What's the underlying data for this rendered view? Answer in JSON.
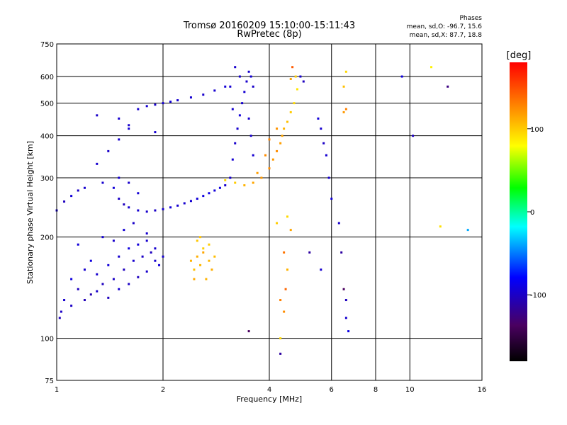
{
  "chart_data": {
    "type": "scatter",
    "title": "Tromsø 20160209 15:10:00-15:11:43",
    "subtitle": "RwPretec (8p)",
    "xlabel": "Frequency [MHz]",
    "ylabel": "Stationary phase Virtual Height [km]",
    "x_scale": "log",
    "y_scale": "log",
    "xlim": [
      1,
      16
    ],
    "ylim": [
      75,
      750
    ],
    "x_ticks": [
      1,
      2,
      4,
      6,
      8,
      10,
      16
    ],
    "x_tick_labels": [
      "1",
      "2",
      "4",
      "6",
      "8",
      "10",
      "16"
    ],
    "y_ticks": [
      75,
      100,
      200,
      300,
      400,
      500,
      600,
      750
    ],
    "y_tick_labels": [
      "75",
      "100",
      "200",
      "300",
      "400",
      "500",
      "600",
      "750"
    ],
    "grid": true,
    "phases": {
      "heading": "Phases",
      "line1": "mean, sd,O: -96.7, 15.6",
      "line2": "mean, sd,X:  87.7, 18.8"
    },
    "colorbar": {
      "label": "[deg]",
      "ticks": [
        100,
        0,
        -100
      ],
      "tick_labels": [
        "100",
        "0",
        "-100"
      ],
      "range": [
        -180,
        180
      ],
      "colors": [
        "#000000",
        "#4a0060",
        "#0000ff",
        "#00ffff",
        "#00ff00",
        "#ffff00",
        "#ff8000",
        "#ff0000"
      ]
    },
    "series": [
      {
        "values": [
          [
            1.05,
            130,
            -95
          ],
          [
            1.1,
            150,
            -90
          ],
          [
            1.15,
            140,
            -100
          ],
          [
            1.2,
            160,
            -95
          ],
          [
            1.25,
            135,
            -105
          ],
          [
            1.3,
            155,
            -95
          ],
          [
            1.35,
            145,
            -100
          ],
          [
            1.4,
            165,
            -92
          ],
          [
            1.45,
            150,
            -98
          ],
          [
            1.5,
            175,
            -95
          ],
          [
            1.55,
            160,
            -100
          ],
          [
            1.6,
            185,
            -90
          ],
          [
            1.65,
            170,
            -95
          ],
          [
            1.7,
            190,
            -92
          ],
          [
            1.75,
            175,
            -98
          ],
          [
            1.8,
            195,
            -95
          ],
          [
            1.85,
            180,
            -100
          ],
          [
            1.9,
            170,
            -95
          ],
          [
            1.95,
            165,
            -92
          ],
          [
            1.1,
            125,
            -98
          ],
          [
            1.2,
            130,
            -102
          ],
          [
            1.3,
            138,
            -96
          ],
          [
            1.4,
            132,
            -100
          ],
          [
            1.5,
            140,
            -94
          ],
          [
            1.6,
            145,
            -98
          ],
          [
            1.7,
            152,
            -100
          ],
          [
            1.8,
            158,
            -96
          ],
          [
            1.9,
            185,
            -95
          ],
          [
            2.0,
            175,
            -95
          ],
          [
            1.02,
            115,
            -100
          ],
          [
            1.03,
            120,
            -98
          ],
          [
            1.25,
            170,
            -90
          ],
          [
            1.15,
            190,
            -92
          ],
          [
            1.35,
            200,
            -94
          ],
          [
            1.45,
            195,
            -96
          ],
          [
            1.55,
            210,
            -93
          ],
          [
            1.65,
            220,
            -97
          ],
          [
            1.8,
            205,
            -95
          ]
        ],
        "name": ""
      },
      {
        "values": [
          [
            1.0,
            240,
            -95
          ],
          [
            1.05,
            255,
            -100
          ],
          [
            1.1,
            265,
            -92
          ],
          [
            1.15,
            275,
            -98
          ],
          [
            1.2,
            280,
            -95
          ],
          [
            1.35,
            290,
            -95
          ],
          [
            1.45,
            280,
            -92
          ],
          [
            1.5,
            260,
            -98
          ],
          [
            1.55,
            250,
            -100
          ],
          [
            1.6,
            245,
            -95
          ],
          [
            1.7,
            240,
            -94
          ],
          [
            1.8,
            238,
            -96
          ],
          [
            1.9,
            240,
            -98
          ],
          [
            2.0,
            242,
            -95
          ],
          [
            2.1,
            245,
            -92
          ],
          [
            2.2,
            248,
            -95
          ],
          [
            2.3,
            252,
            -95
          ],
          [
            2.4,
            256,
            -94
          ],
          [
            2.5,
            260,
            -92
          ],
          [
            2.6,
            265,
            -90
          ],
          [
            2.7,
            270,
            -88
          ],
          [
            2.8,
            275,
            -92
          ],
          [
            2.9,
            280,
            -90
          ],
          [
            3.0,
            285,
            -95
          ],
          [
            1.5,
            300,
            -94
          ],
          [
            1.6,
            290,
            -96
          ],
          [
            1.7,
            270,
            -93
          ],
          [
            1.3,
            330,
            -95
          ],
          [
            1.4,
            360,
            -97
          ],
          [
            1.5,
            390,
            -95
          ],
          [
            1.6,
            420,
            -93
          ]
        ],
        "name": ""
      },
      {
        "values": [
          [
            1.7,
            480,
            -95
          ],
          [
            1.8,
            490,
            -94
          ],
          [
            1.9,
            495,
            -96
          ],
          [
            2.0,
            500,
            -95
          ],
          [
            2.1,
            505,
            -92
          ],
          [
            2.2,
            510,
            -95
          ],
          [
            2.4,
            520,
            -94
          ],
          [
            2.6,
            530,
            -96
          ],
          [
            2.8,
            545,
            -95
          ],
          [
            3.0,
            560,
            -93
          ],
          [
            1.3,
            460,
            -97
          ],
          [
            1.5,
            450,
            -95
          ],
          [
            1.6,
            430,
            -96
          ],
          [
            1.9,
            410,
            -94
          ]
        ],
        "name": ""
      },
      {
        "values": [
          [
            3.1,
            300,
            -95
          ],
          [
            3.15,
            340,
            -94
          ],
          [
            3.2,
            380,
            -96
          ],
          [
            3.25,
            420,
            -95
          ],
          [
            3.3,
            460,
            -92
          ],
          [
            3.35,
            500,
            -95
          ],
          [
            3.4,
            540,
            -94
          ],
          [
            3.45,
            580,
            -96
          ],
          [
            3.5,
            620,
            -95
          ],
          [
            3.55,
            600,
            -93
          ],
          [
            3.6,
            560,
            -97
          ],
          [
            3.3,
            600,
            -95
          ],
          [
            3.2,
            640,
            -96
          ],
          [
            3.1,
            560,
            -94
          ],
          [
            3.15,
            480,
            -95
          ],
          [
            3.5,
            450,
            -95
          ],
          [
            3.55,
            400,
            -96
          ],
          [
            3.6,
            350,
            -94
          ]
        ],
        "name": ""
      },
      {
        "values": [
          [
            2.4,
            170,
            110
          ],
          [
            2.45,
            160,
            105
          ],
          [
            2.5,
            175,
            112
          ],
          [
            2.55,
            165,
            108
          ],
          [
            2.6,
            180,
            115
          ],
          [
            2.65,
            150,
            110
          ],
          [
            2.7,
            170,
            108
          ],
          [
            2.75,
            160,
            112
          ],
          [
            2.8,
            175,
            106
          ],
          [
            2.5,
            195,
            102
          ],
          [
            2.6,
            185,
            98
          ],
          [
            2.45,
            150,
            114
          ],
          [
            2.7,
            190,
            100
          ],
          [
            2.55,
            200,
            104
          ]
        ],
        "name": ""
      },
      {
        "values": [
          [
            3.0,
            295,
            95
          ],
          [
            3.2,
            290,
            100
          ],
          [
            3.4,
            285,
            110
          ],
          [
            3.6,
            290,
            115
          ],
          [
            3.8,
            300,
            120
          ],
          [
            4.0,
            320,
            125
          ],
          [
            4.1,
            340,
            120
          ],
          [
            4.2,
            360,
            125
          ],
          [
            4.3,
            380,
            118
          ],
          [
            4.35,
            400,
            115
          ],
          [
            4.4,
            420,
            110
          ],
          [
            4.5,
            440,
            105
          ],
          [
            4.6,
            470,
            100
          ],
          [
            4.7,
            500,
            95
          ],
          [
            4.8,
            550,
            90
          ],
          [
            4.75,
            600,
            100
          ],
          [
            4.2,
            420,
            122
          ],
          [
            4.0,
            390,
            128
          ],
          [
            3.9,
            350,
            125
          ],
          [
            3.7,
            310,
            118
          ]
        ],
        "name": ""
      },
      {
        "values": [
          [
            4.3,
            100,
            95
          ],
          [
            4.4,
            120,
            125
          ],
          [
            4.45,
            140,
            140
          ],
          [
            4.5,
            160,
            110
          ],
          [
            4.4,
            180,
            135
          ],
          [
            4.3,
            130,
            130
          ],
          [
            4.5,
            230,
            95
          ],
          [
            4.6,
            210,
            115
          ],
          [
            4.2,
            220,
            100
          ],
          [
            6.6,
            620,
            95
          ],
          [
            6.5,
            560,
            105
          ],
          [
            6.6,
            480,
            130
          ],
          [
            6.5,
            470,
            120
          ],
          [
            4.65,
            640,
            145
          ],
          [
            4.6,
            590,
            115
          ],
          [
            11.5,
            640,
            85
          ],
          [
            12.2,
            215,
            92
          ]
        ],
        "name": ""
      },
      {
        "values": [
          [
            4.9,
            600,
            -95
          ],
          [
            5.0,
            580,
            -100
          ],
          [
            5.5,
            450,
            -92
          ],
          [
            5.6,
            420,
            -95
          ],
          [
            5.7,
            380,
            -98
          ],
          [
            5.8,
            350,
            -94
          ],
          [
            5.9,
            300,
            -95
          ],
          [
            6.0,
            260,
            -92
          ],
          [
            6.3,
            220,
            -96
          ],
          [
            6.4,
            180,
            -110
          ],
          [
            6.5,
            140,
            -130
          ],
          [
            6.6,
            130,
            -100
          ],
          [
            6.6,
            115,
            -95
          ],
          [
            6.7,
            105,
            -88
          ],
          [
            10.2,
            400,
            -100
          ],
          [
            12.8,
            560,
            -120
          ],
          [
            9.5,
            600,
            -90
          ],
          [
            14.6,
            210,
            -40
          ],
          [
            5.2,
            180,
            -110
          ],
          [
            5.6,
            160,
            -95
          ],
          [
            4.3,
            90,
            -110
          ],
          [
            3.5,
            105,
            -130
          ]
        ],
        "name": ""
      }
    ]
  }
}
